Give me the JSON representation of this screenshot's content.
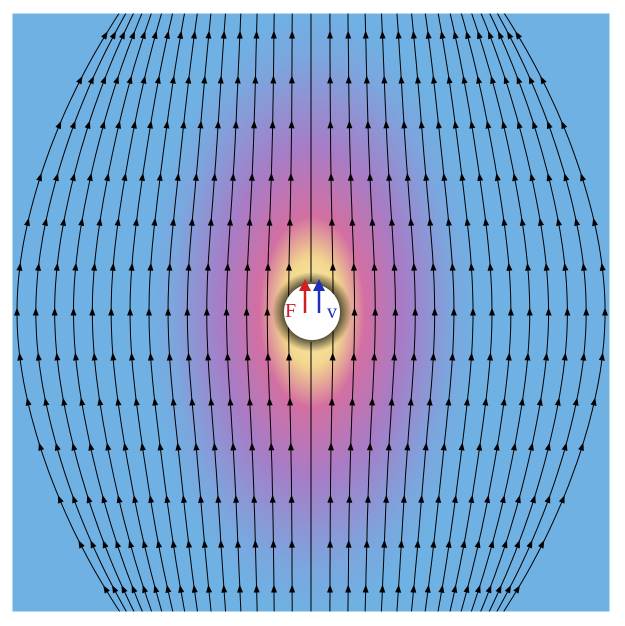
{
  "diagram": {
    "labels": {
      "force": "F",
      "velocity": "v"
    },
    "colors": {
      "field_far": "#6fb1e3",
      "field_mid": "#a07fc8",
      "field_high": "#c86fae",
      "field_peak": "#f7e9a0",
      "streamline": "#000000",
      "force_arrow": "#d11f26",
      "velocity_arrow": "#1f2fb8",
      "particle": "#ffffff"
    },
    "streamline_count": 31,
    "arrows_per_streamline": 13,
    "icons": {
      "streamline_arrowhead": "arrowhead-up-icon"
    }
  }
}
